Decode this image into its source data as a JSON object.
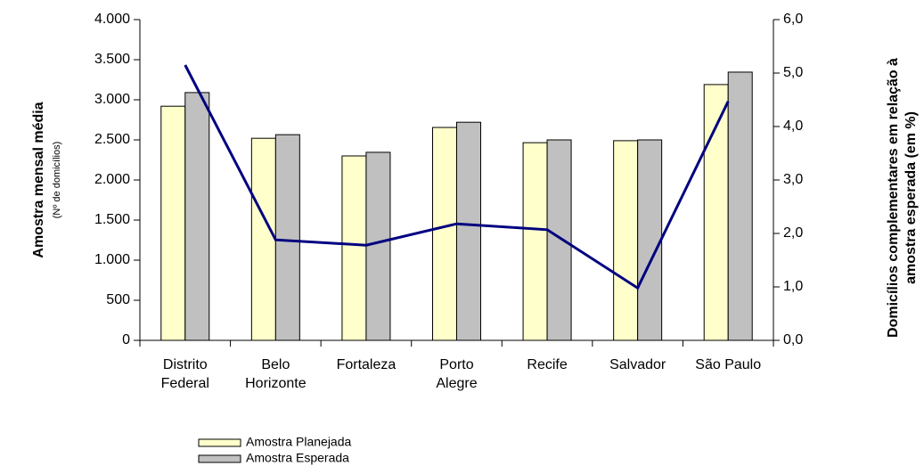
{
  "chart_data": {
    "type": "bar",
    "categories": [
      [
        "Distrito",
        "Federal"
      ],
      [
        "Belo",
        "Horizonte"
      ],
      [
        "Fortaleza"
      ],
      [
        "Porto",
        "Alegre"
      ],
      [
        "Recife"
      ],
      [
        "Salvador"
      ],
      [
        "São Paulo"
      ]
    ],
    "series": [
      {
        "name": "Amostra Planejada",
        "color": "#ffffcc",
        "values": [
          2920,
          2520,
          2300,
          2655,
          2465,
          2490,
          3190
        ]
      },
      {
        "name": "Amostra Esperada",
        "color": "#c0c0c0",
        "values": [
          3090,
          2565,
          2345,
          2720,
          2500,
          2500,
          3345
        ]
      },
      {
        "type": "line",
        "axis": "y2",
        "color": "#000080",
        "values": [
          5.15,
          1.88,
          1.78,
          2.18,
          2.07,
          0.98,
          4.47
        ]
      }
    ],
    "ylabel": [
      "Amostra mensal média",
      "(Nº de domicílios)"
    ],
    "y2label": [
      "Domicílios complementares em relação à",
      "amostra esperada (em %)"
    ],
    "ylim": [
      0,
      4000
    ],
    "yticks": [
      0,
      500,
      {
        "value": 1000,
        "label": "1.000"
      },
      {
        "value": 1500,
        "label": "1.500"
      },
      {
        "value": 2000,
        "label": "2.000"
      },
      {
        "value": 2500,
        "label": "2.500"
      },
      {
        "value": 3000,
        "label": "3.000"
      },
      {
        "value": 3500,
        "label": "3.500"
      },
      {
        "value": 4000,
        "label": "4.000"
      }
    ],
    "y2lim": [
      0,
      6
    ],
    "y2ticks": [
      {
        "value": 0,
        "label": "0,0"
      },
      {
        "value": 1,
        "label": "1,0"
      },
      {
        "value": 2,
        "label": "2,0"
      },
      {
        "value": 3,
        "label": "3,0"
      },
      {
        "value": 4,
        "label": "4,0"
      },
      {
        "value": 5,
        "label": "5,0"
      },
      {
        "value": 6,
        "label": "6,0"
      }
    ],
    "grid": false
  }
}
